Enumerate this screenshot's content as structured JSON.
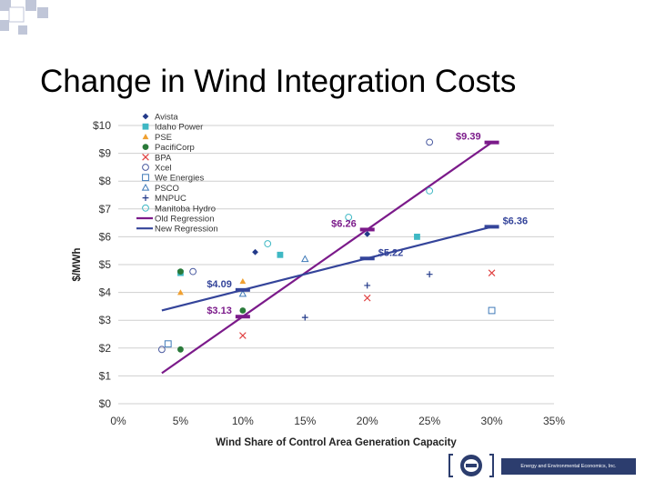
{
  "slide": {
    "title": "Change in Wind Integration Costs",
    "logo_text": "Energy and Environmental Economics, Inc."
  },
  "colors": {
    "old_regression": "#7b1a8a",
    "new_regression": "#34449a",
    "grid": "#cfcfcf",
    "deco_squares": "#c0c6d8"
  },
  "chart_data": {
    "type": "scatter",
    "xlabel": "Wind Share of Control Area Generation Capacity",
    "ylabel": "$/MWh",
    "xlim": [
      0,
      35
    ],
    "ylim": [
      0,
      10
    ],
    "x_ticks": [
      0,
      5,
      10,
      15,
      20,
      25,
      30,
      35
    ],
    "x_tick_labels": [
      "0%",
      "5%",
      "10%",
      "15%",
      "20%",
      "25%",
      "30%",
      "35%"
    ],
    "y_ticks": [
      0,
      1,
      2,
      3,
      4,
      5,
      6,
      7,
      8,
      9,
      10
    ],
    "y_tick_labels": [
      "$0",
      "$1",
      "$2",
      "$3",
      "$4",
      "$5",
      "$6",
      "$7",
      "$8",
      "$9",
      "$10"
    ],
    "grid": "horizontal",
    "legend_position": "top-left",
    "series": [
      {
        "name": "Avista",
        "marker": "diamond-filled",
        "color": "#233a8a",
        "points": [
          [
            11,
            5.45
          ],
          [
            20,
            6.1
          ]
        ]
      },
      {
        "name": "Idaho Power",
        "marker": "square-filled",
        "color": "#3fb8c4",
        "points": [
          [
            5,
            4.7
          ],
          [
            13,
            5.35
          ],
          [
            24,
            6.0
          ]
        ]
      },
      {
        "name": "PSE",
        "marker": "triangle-filled",
        "color": "#f0a030",
        "points": [
          [
            5,
            4.0
          ],
          [
            10,
            4.4
          ]
        ]
      },
      {
        "name": "PacifiCorp",
        "marker": "circle-filled",
        "color": "#2a7a3a",
        "points": [
          [
            5,
            1.95
          ],
          [
            5,
            4.75
          ],
          [
            10,
            3.35
          ]
        ]
      },
      {
        "name": "BPA",
        "marker": "x",
        "color": "#e04040",
        "points": [
          [
            10,
            2.45
          ],
          [
            20,
            3.8
          ],
          [
            30,
            4.7
          ]
        ]
      },
      {
        "name": "Xcel",
        "marker": "circle-open",
        "color": "#4a5aa0",
        "points": [
          [
            3.5,
            1.95
          ],
          [
            6,
            4.75
          ],
          [
            25,
            9.4
          ]
        ]
      },
      {
        "name": "We Energies",
        "marker": "square-open",
        "color": "#3f7ab8",
        "points": [
          [
            4,
            2.15
          ],
          [
            30,
            3.35
          ]
        ]
      },
      {
        "name": "PSCO",
        "marker": "triangle-open",
        "color": "#3f7ab8",
        "points": [
          [
            10,
            3.95
          ],
          [
            15,
            5.2
          ]
        ]
      },
      {
        "name": "MNPUC",
        "marker": "plus",
        "color": "#233a8a",
        "points": [
          [
            15,
            3.1
          ],
          [
            20,
            4.25
          ],
          [
            25,
            4.65
          ]
        ]
      },
      {
        "name": "Manitoba Hydro",
        "marker": "circle-open",
        "color": "#3fb8c4",
        "points": [
          [
            12,
            5.75
          ],
          [
            18.5,
            6.7
          ],
          [
            25,
            7.65
          ]
        ]
      }
    ],
    "lines": [
      {
        "name": "Old Regression",
        "color": "#7b1a8a",
        "from": [
          3.5,
          1.1
        ],
        "to": [
          30,
          9.39
        ]
      },
      {
        "name": "New Regression",
        "color": "#34449a",
        "from": [
          3.5,
          3.35
        ],
        "to": [
          30,
          6.36
        ]
      }
    ],
    "annotations": [
      {
        "label": "$9.39",
        "x": 30,
        "y": 9.39,
        "color": "#7b1a8a",
        "side": "left"
      },
      {
        "label": "$6.26",
        "x": 20,
        "y": 6.26,
        "color": "#7b1a8a",
        "side": "left"
      },
      {
        "label": "$3.13",
        "x": 10,
        "y": 3.13,
        "color": "#7b1a8a",
        "side": "left"
      },
      {
        "label": "$6.36",
        "x": 30,
        "y": 6.36,
        "color": "#34449a",
        "side": "right"
      },
      {
        "label": "$5.22",
        "x": 20,
        "y": 5.22,
        "color": "#34449a",
        "side": "right"
      },
      {
        "label": "$4.09",
        "x": 10,
        "y": 4.09,
        "color": "#34449a",
        "side": "left"
      }
    ]
  }
}
